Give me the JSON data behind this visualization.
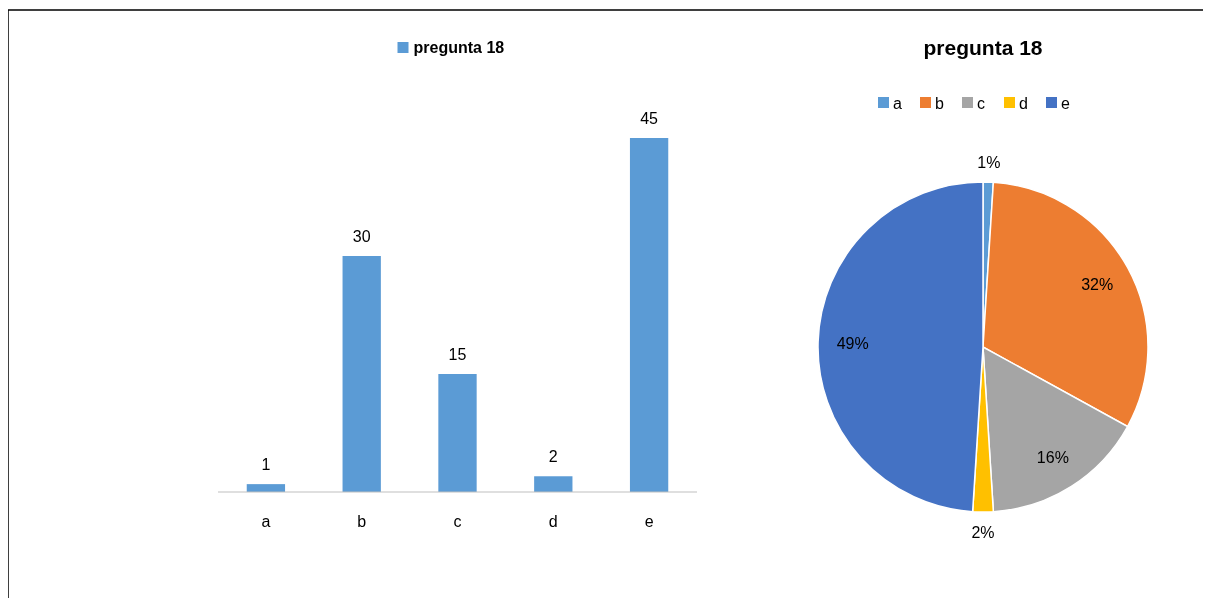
{
  "chart_data": [
    {
      "type": "bar",
      "categories": [
        "a",
        "b",
        "c",
        "d",
        "e"
      ],
      "series": [
        {
          "name": "pregunta 18",
          "color": "#5b9bd5",
          "values": [
            1,
            30,
            15,
            2,
            45
          ]
        }
      ],
      "data_labels": true,
      "legend": "top"
    },
    {
      "type": "pie",
      "title": "pregunta 18",
      "categories": [
        "a",
        "b",
        "c",
        "d",
        "e"
      ],
      "values": [
        1,
        32,
        16,
        2,
        49
      ],
      "colors": [
        "#5b9bd5",
        "#ed7d31",
        "#a5a5a5",
        "#ffc000",
        "#4472c4"
      ],
      "value_labels": [
        "1%",
        "32%",
        "16%",
        "2%",
        "49%"
      ],
      "legend": "top"
    }
  ]
}
